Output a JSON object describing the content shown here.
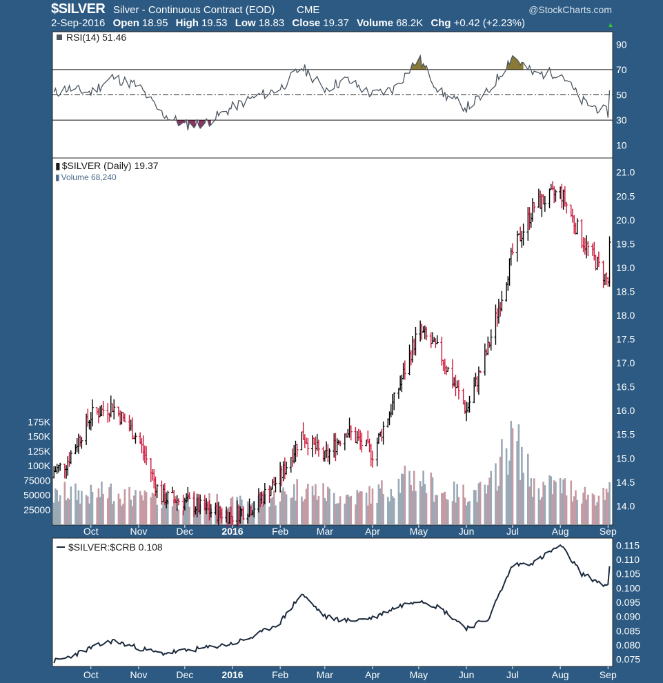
{
  "header": {
    "symbol": "$SILVER",
    "description": "Silver - Continuous Contract (EOD)",
    "exchange": "CME",
    "logo": "@StockCharts.com",
    "date": "2-Sep-2016",
    "open_label": "Open",
    "open": "18.95",
    "high_label": "High",
    "high": "19.53",
    "low_label": "Low",
    "low": "18.83",
    "close_label": "Close",
    "close": "19.37",
    "volume_label": "Volume",
    "volume": "68.2K",
    "chg_label": "Chg",
    "chg": "+0.42 (+2.23%)",
    "up_icon": "triangle-up-icon"
  },
  "colors": {
    "background": "#2c5a82",
    "panel": "#ffffff",
    "up_bar": "#000000",
    "down_bar": "#cc1133",
    "rsi_line": "#4a5560",
    "rsi_overbought_fill": "#8a7a35",
    "rsi_oversold_fill": "#8a3560",
    "volume_up": "#9aa9b6",
    "volume_down": "#c59aa3",
    "ratio_line": "#1c2a3d"
  },
  "chart_data": [
    {
      "type": "line",
      "title": "RSI(14) 51.46",
      "label": "RSI(14)",
      "value": "51.46",
      "ylim": [
        0,
        100
      ],
      "yticks": [
        "90",
        "70",
        "50",
        "30",
        "10"
      ],
      "reference_lines": [
        70,
        50,
        30
      ],
      "x": [
        "2015-09-01",
        "2015-09-15",
        "2015-10-01",
        "2015-10-15",
        "2015-11-01",
        "2015-11-15",
        "2015-12-01",
        "2015-12-15",
        "2016-01-01",
        "2016-01-15",
        "2016-02-01",
        "2016-02-15",
        "2016-03-01",
        "2016-03-15",
        "2016-04-01",
        "2016-04-15",
        "2016-05-01",
        "2016-05-15",
        "2016-06-01",
        "2016-06-15",
        "2016-07-01",
        "2016-07-15",
        "2016-08-01",
        "2016-08-15",
        "2016-09-01",
        "2016-09-02"
      ],
      "values": [
        48,
        55,
        52,
        64,
        57,
        36,
        26,
        28,
        40,
        48,
        55,
        72,
        55,
        62,
        50,
        55,
        79,
        52,
        40,
        52,
        81,
        66,
        68,
        45,
        36,
        51.46
      ]
    },
    {
      "type": "ohlc",
      "title": "$SILVER (Daily) 19.37",
      "label": "$SILVER (Daily)",
      "value": "19.37",
      "volume_label": "Volume 68,240",
      "ylim": [
        13.6,
        21.3
      ],
      "yticks": [
        "21.0",
        "20.5",
        "20.0",
        "19.5",
        "19.0",
        "18.5",
        "18.0",
        "17.5",
        "17.0",
        "16.5",
        "16.0",
        "15.5",
        "15.0",
        "14.5",
        "14.0"
      ],
      "volume_ticks": [
        "175K",
        "150K",
        "125K",
        "100K",
        "75000",
        "50000",
        "25000"
      ],
      "x": [
        "2015-09-01",
        "2015-09-15",
        "2015-10-01",
        "2015-10-15",
        "2015-11-01",
        "2015-11-15",
        "2015-12-01",
        "2015-12-15",
        "2016-01-01",
        "2016-01-15",
        "2016-02-01",
        "2016-02-15",
        "2016-03-01",
        "2016-03-15",
        "2016-04-01",
        "2016-04-15",
        "2016-05-01",
        "2016-05-15",
        "2016-06-01",
        "2016-06-15",
        "2016-07-01",
        "2016-07-15",
        "2016-08-01",
        "2016-08-15",
        "2016-09-01",
        "2016-09-02"
      ],
      "close": [
        14.6,
        14.9,
        15.9,
        16.1,
        15.4,
        14.2,
        14.1,
        13.9,
        13.8,
        14.0,
        14.6,
        15.5,
        15.0,
        15.6,
        15.1,
        16.2,
        17.7,
        17.2,
        16.0,
        17.3,
        19.3,
        20.3,
        20.6,
        19.6,
        18.7,
        19.37
      ],
      "volume": [
        45000,
        60000,
        55000,
        62000,
        48000,
        50000,
        42000,
        45000,
        38000,
        44000,
        55000,
        70000,
        58000,
        52000,
        55000,
        75000,
        90000,
        60000,
        58000,
        62000,
        170000,
        70000,
        72000,
        60000,
        50000,
        68240
      ]
    },
    {
      "type": "line",
      "title": "$SILVER:$CRB 0.108",
      "label": "$SILVER:$CRB",
      "value": "0.108",
      "ylim": [
        0.0725,
        0.1175
      ],
      "yticks": [
        "0.115",
        "0.110",
        "0.105",
        "0.100",
        "0.095",
        "0.090",
        "0.085",
        "0.080",
        "0.075"
      ],
      "x": [
        "2015-09-01",
        "2015-09-15",
        "2015-10-01",
        "2015-10-15",
        "2015-11-01",
        "2015-11-15",
        "2015-12-01",
        "2015-12-15",
        "2016-01-01",
        "2016-01-15",
        "2016-02-01",
        "2016-02-15",
        "2016-03-01",
        "2016-03-15",
        "2016-04-01",
        "2016-04-15",
        "2016-05-01",
        "2016-05-15",
        "2016-06-01",
        "2016-06-15",
        "2016-07-01",
        "2016-07-15",
        "2016-08-01",
        "2016-08-15",
        "2016-09-01",
        "2016-09-02"
      ],
      "values": [
        0.0735,
        0.0755,
        0.079,
        0.0815,
        0.079,
        0.077,
        0.078,
        0.079,
        0.0805,
        0.083,
        0.088,
        0.098,
        0.09,
        0.0885,
        0.0895,
        0.093,
        0.096,
        0.093,
        0.086,
        0.089,
        0.108,
        0.109,
        0.115,
        0.105,
        0.1005,
        0.108
      ]
    }
  ],
  "x_axis": {
    "months": [
      "Oct",
      "Nov",
      "Dec",
      "2016",
      "Feb",
      "Mar",
      "Apr",
      "May",
      "Jun",
      "Jul",
      "Aug",
      "Sep"
    ],
    "month_dates": [
      "2015-10-01",
      "2015-11-01",
      "2015-12-01",
      "2016-01-01",
      "2016-02-01",
      "2016-03-01",
      "2016-04-01",
      "2016-05-01",
      "2016-06-01",
      "2016-07-01",
      "2016-08-01",
      "2016-09-01"
    ]
  }
}
